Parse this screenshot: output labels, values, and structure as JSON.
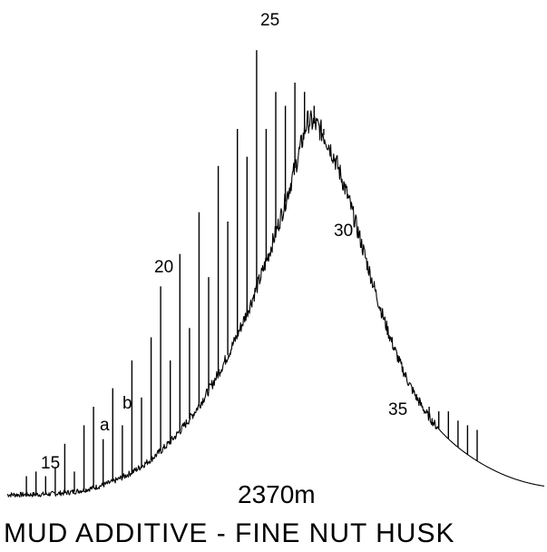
{
  "chart_data": {
    "type": "line",
    "title": "",
    "xlabel": "",
    "ylabel": "",
    "peak_labels": [
      "15",
      "a",
      "b",
      "20",
      "25",
      "30",
      "35"
    ],
    "peaks": [
      {
        "label": "15",
        "x": 15,
        "y": 0.12
      },
      {
        "label": "a",
        "x": 16.5,
        "y": 0.2
      },
      {
        "label": "b",
        "x": 17.5,
        "y": 0.24
      },
      {
        "label": "20",
        "x": 20,
        "y": 0.46
      },
      {
        "label": "25",
        "x": 25,
        "y": 0.97
      },
      {
        "label": "30",
        "x": 30,
        "y": 0.58
      },
      {
        "label": "35",
        "x": 35,
        "y": 0.19
      }
    ],
    "xlim": [
      12,
      40
    ],
    "ylim": [
      0,
      1
    ],
    "sample_depth": "2370m",
    "caption": "MUD ADDITIVE  -  FINE NUT HUSK"
  }
}
